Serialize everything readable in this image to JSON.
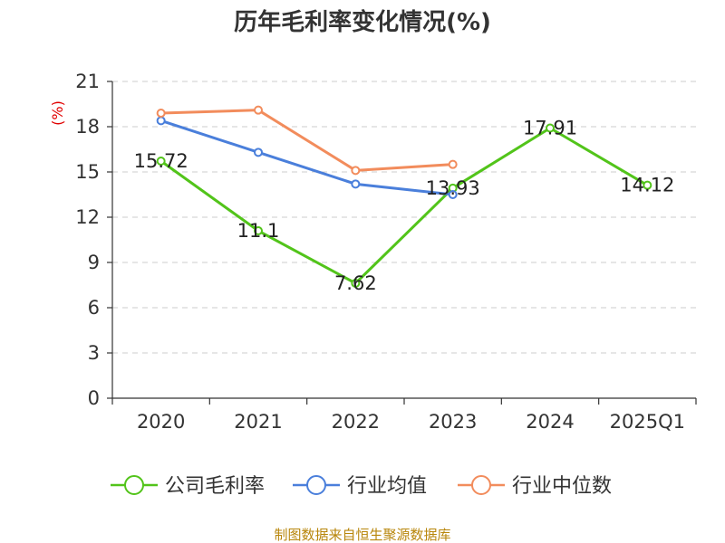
{
  "chart_data": {
    "type": "line",
    "title": "历年毛利率变化情况(%)",
    "ylabel": "(%)",
    "xlabel": "",
    "categories": [
      "2020",
      "2021",
      "2022",
      "2023",
      "2024",
      "2025Q1"
    ],
    "ylim": [
      0,
      21
    ],
    "yticks": [
      0,
      3,
      6,
      9,
      12,
      15,
      18,
      21
    ],
    "grid": true,
    "legend_position": "bottom",
    "series": [
      {
        "name": "公司毛利率",
        "color": "#52c41a",
        "values": [
          15.72,
          11.1,
          7.62,
          13.93,
          17.91,
          14.12
        ],
        "labels": [
          "15.72",
          "11.1",
          "7.62",
          "13.93",
          "17.91",
          "14.12"
        ]
      },
      {
        "name": "行业均值",
        "color": "#4a7fdb",
        "values": [
          18.4,
          16.3,
          14.2,
          13.5,
          null,
          null
        ]
      },
      {
        "name": "行业中位数",
        "color": "#f28c5c",
        "values": [
          18.9,
          19.1,
          15.1,
          15.5,
          null,
          null
        ]
      }
    ]
  },
  "source": "制图数据来自恒生聚源数据库"
}
